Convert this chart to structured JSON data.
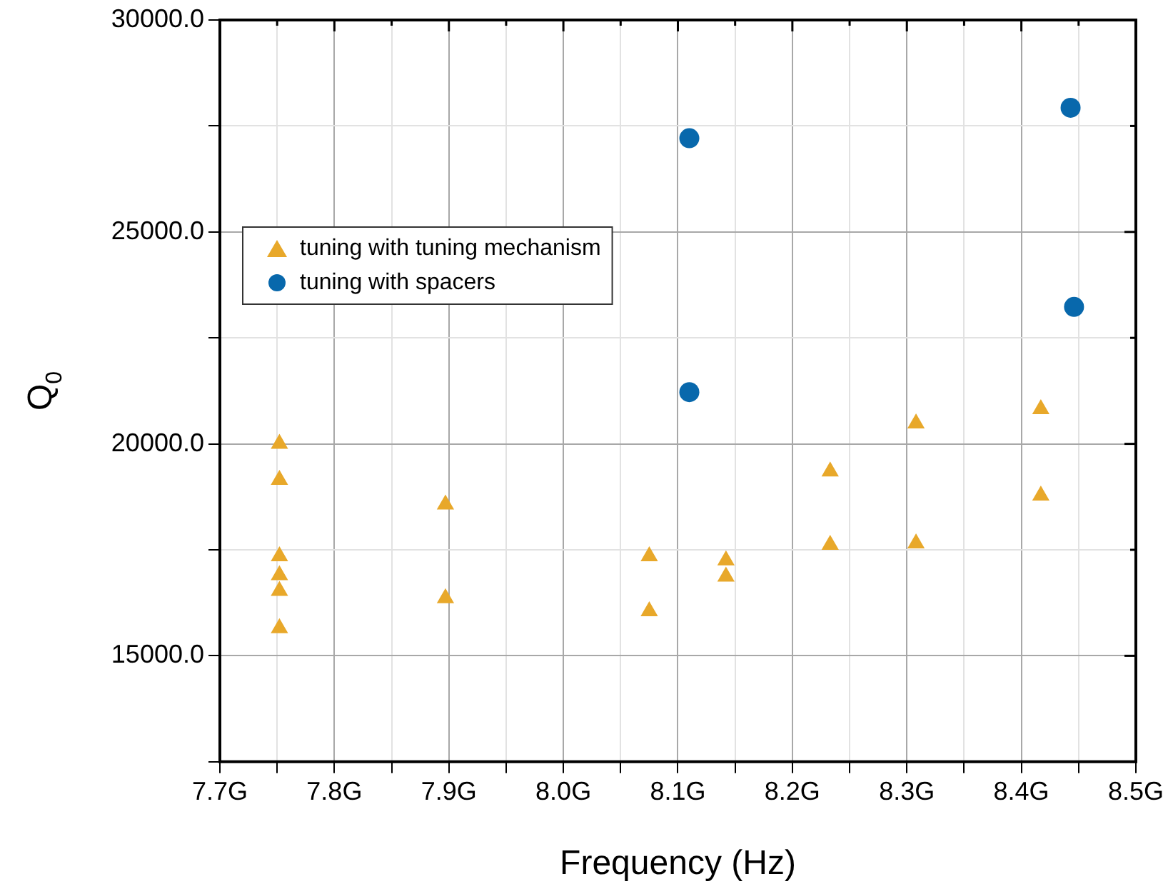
{
  "chart_data": {
    "type": "scatter",
    "xlabel": "Frequency (Hz)",
    "ylabel": "Q$_{0}$",
    "xlim": [
      7.7,
      8.5
    ],
    "xticks": [
      {
        "value": 7.7,
        "label": "7.7G"
      },
      {
        "value": 7.75,
        "label": null
      },
      {
        "value": 7.8,
        "label": "7.8G"
      },
      {
        "value": 7.85,
        "label": null
      },
      {
        "value": 7.9,
        "label": "7.9G"
      },
      {
        "value": 7.95,
        "label": null
      },
      {
        "value": 8.0,
        "label": "8.0G"
      },
      {
        "value": 8.05,
        "label": null
      },
      {
        "value": 8.1,
        "label": "8.1G"
      },
      {
        "value": 8.15,
        "label": null
      },
      {
        "value": 8.2,
        "label": "8.2G"
      },
      {
        "value": 8.25,
        "label": null
      },
      {
        "value": 8.3,
        "label": "8.3G"
      },
      {
        "value": 8.35,
        "label": null
      },
      {
        "value": 8.4,
        "label": "8.4G"
      },
      {
        "value": 8.45,
        "label": null
      },
      {
        "value": 8.5,
        "label": "8.5G"
      }
    ],
    "ylim": [
      12500,
      30000
    ],
    "yticks": [
      {
        "value": 12500,
        "label": null
      },
      {
        "value": 15000,
        "label": "15000.0"
      },
      {
        "value": 17500,
        "label": null
      },
      {
        "value": 20000,
        "label": "20000.0"
      },
      {
        "value": 22500,
        "label": null
      },
      {
        "value": 25000,
        "label": "25000.0"
      },
      {
        "value": 27500,
        "label": null
      },
      {
        "value": 30000,
        "label": "30000.0"
      }
    ],
    "grid": true,
    "legend": "top left",
    "series": [
      {
        "name": "tuning with tuning mechanism",
        "color": "#e8a82a",
        "marker": "triangle",
        "x": [
          7.752,
          7.752,
          7.752,
          7.752,
          7.752,
          7.752,
          7.897,
          7.897,
          8.075,
          8.075,
          8.142,
          8.142,
          8.233,
          8.233,
          8.308,
          8.308,
          8.417,
          8.417
        ],
        "values": [
          20000,
          19150,
          17350,
          16900,
          16530,
          15650,
          18570,
          16360,
          17350,
          16050,
          17250,
          16870,
          19350,
          17620,
          20480,
          17650,
          20820,
          18780
        ]
      },
      {
        "name": "tuning with spacers",
        "color": "#0868ac",
        "marker": "circle",
        "x": [
          8.11,
          8.11,
          8.443,
          8.446
        ],
        "values": [
          27210,
          21220,
          27930,
          23230
        ]
      }
    ]
  }
}
